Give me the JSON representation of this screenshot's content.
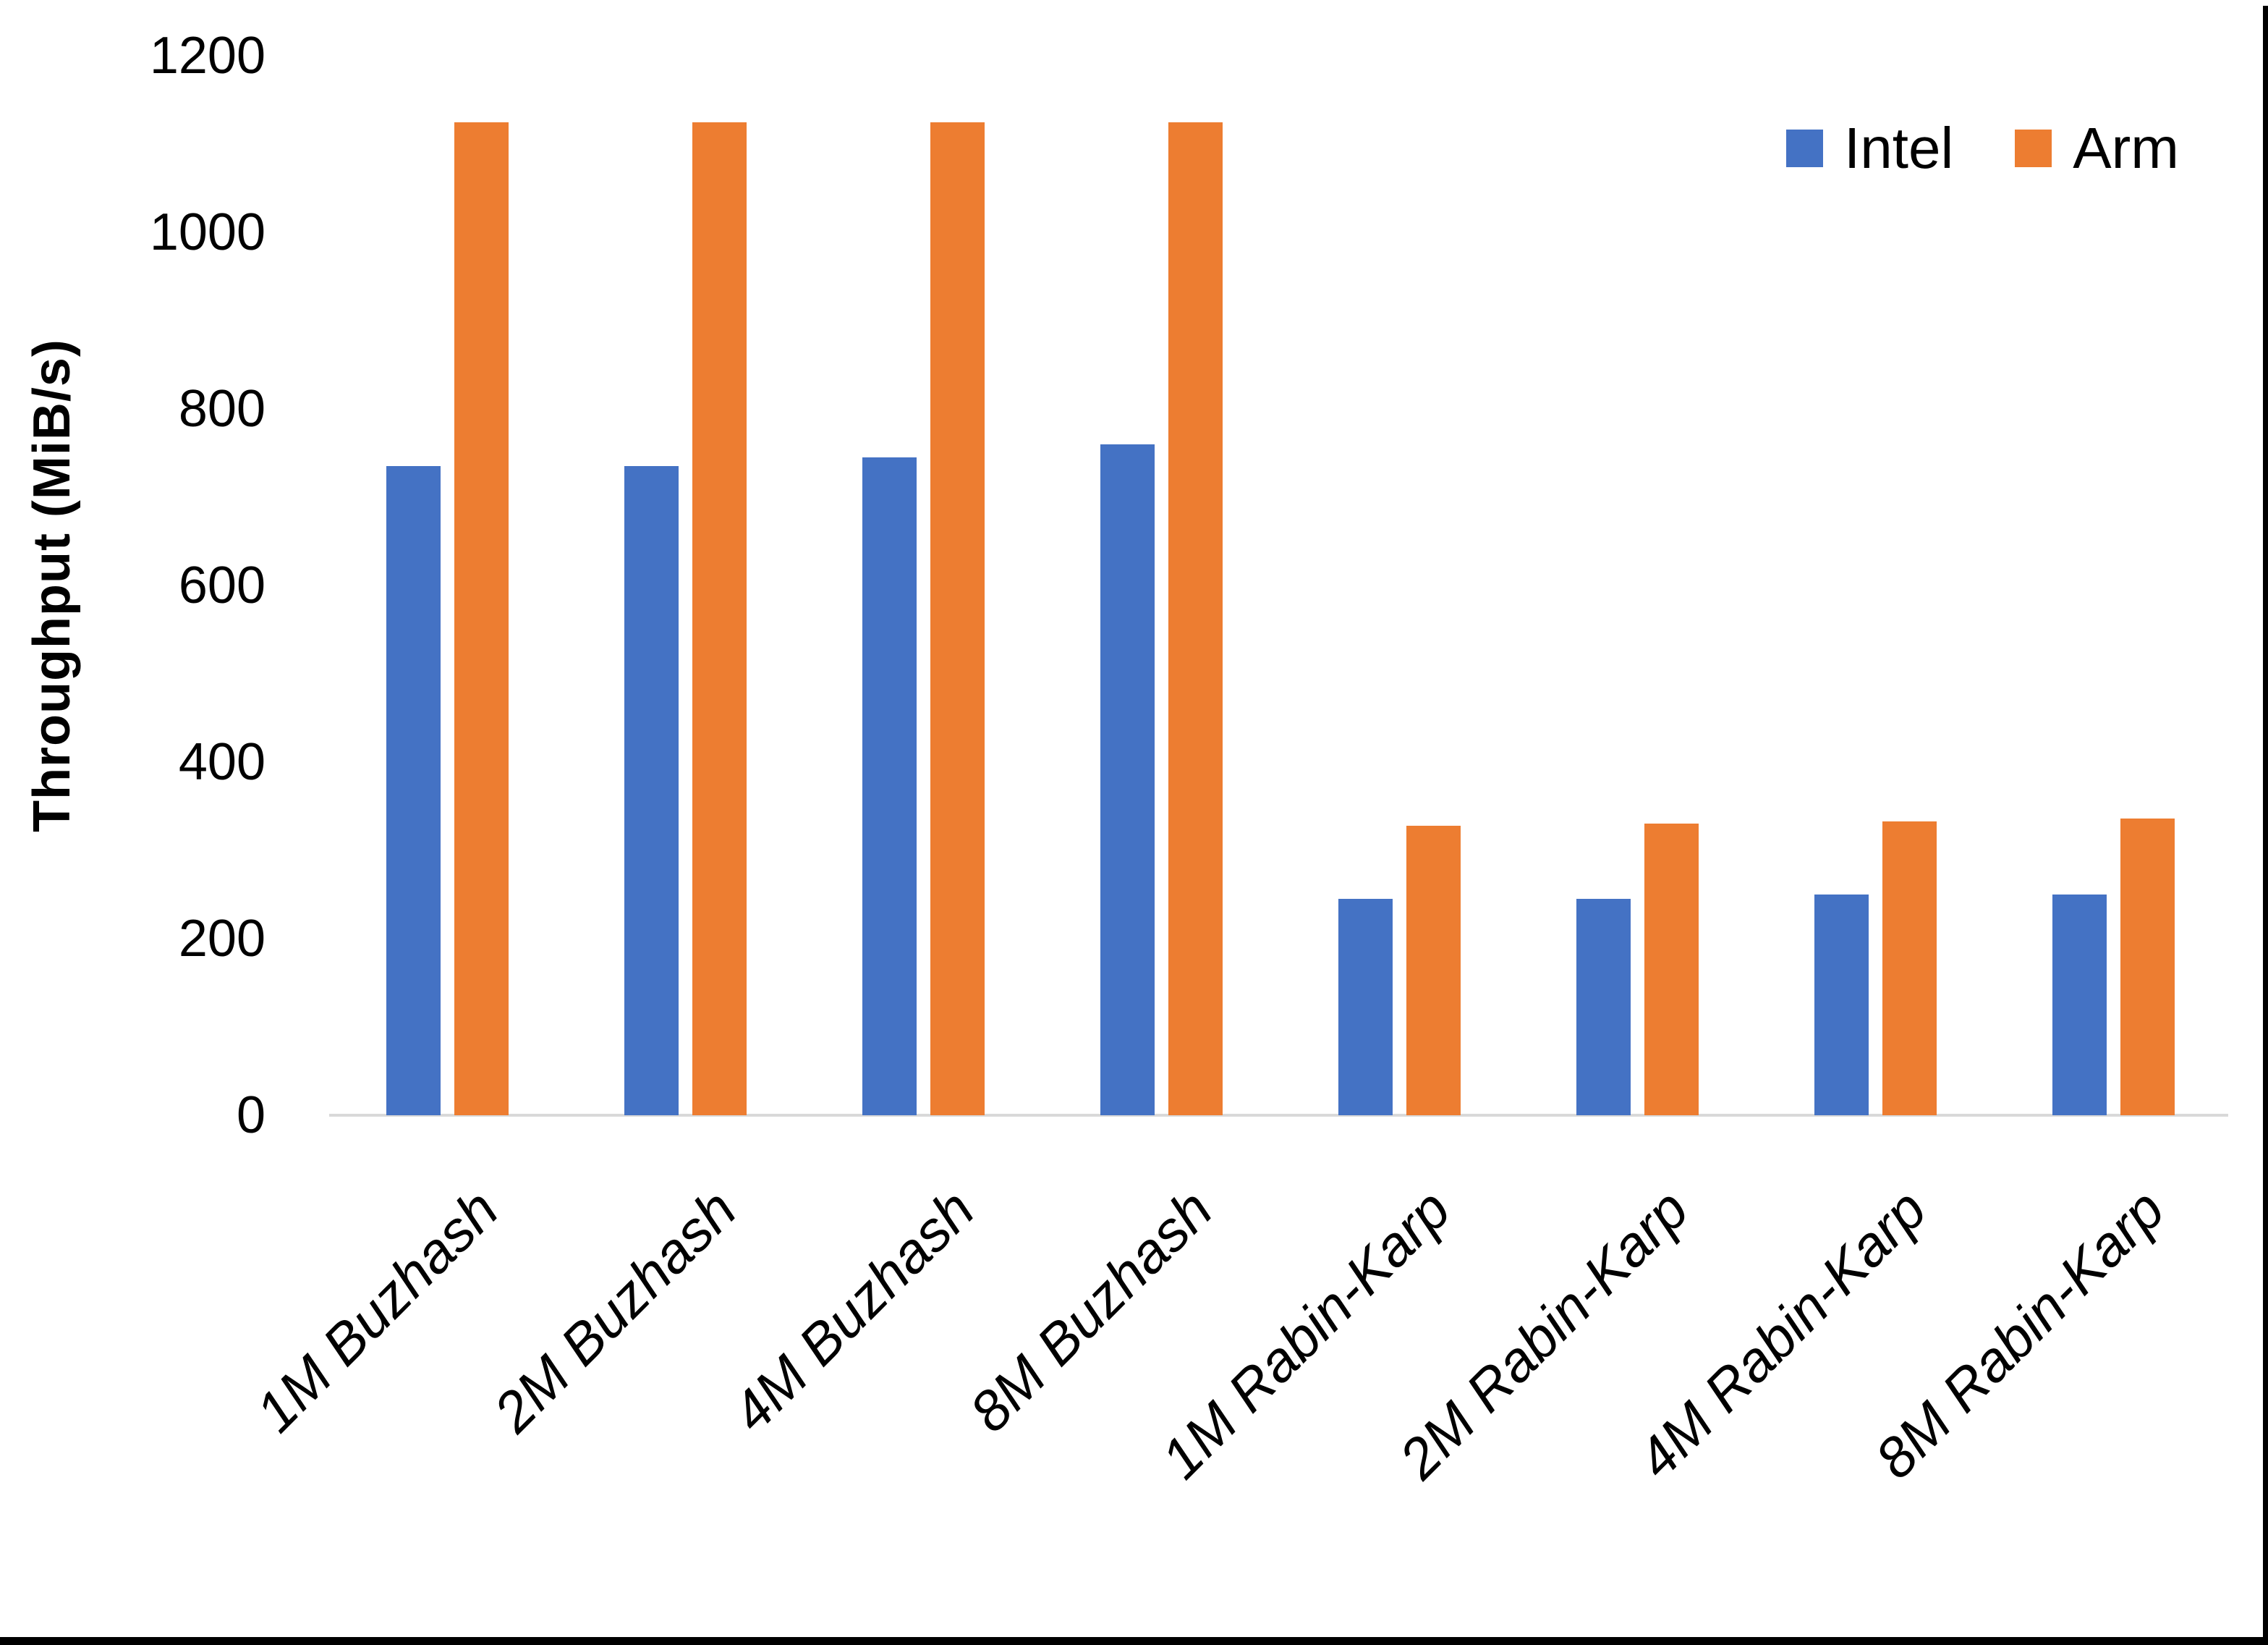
{
  "chart_data": {
    "type": "bar",
    "title": "",
    "xlabel": "",
    "ylabel": "Throughput (MiB/s)",
    "categories": [
      "1M Buzhash",
      "2M Buzhash",
      "4M Buzhash",
      "8M Buzhash",
      "1M Rabin-Karp",
      "2M Rabin-Karp",
      "4M Rabin-Karp",
      "8M Rabin-Karp"
    ],
    "series": [
      {
        "name": "Intel",
        "color": "#4472C4",
        "values": [
          735,
          735,
          745,
          760,
          245,
          245,
          250,
          250
        ]
      },
      {
        "name": "Arm",
        "color": "#ED7D31",
        "values": [
          1125,
          1125,
          1125,
          1125,
          328,
          330,
          333,
          336
        ]
      }
    ],
    "ylim": [
      0,
      1200
    ],
    "yticks": [
      0,
      200,
      400,
      600,
      800,
      1000,
      1200
    ],
    "ytick_labels": [
      "0",
      "200",
      "400",
      "600",
      "800",
      "1000",
      "1200"
    ],
    "grid": false,
    "legend_position": "top-right",
    "axis_line_color": "#D9D9D9"
  }
}
